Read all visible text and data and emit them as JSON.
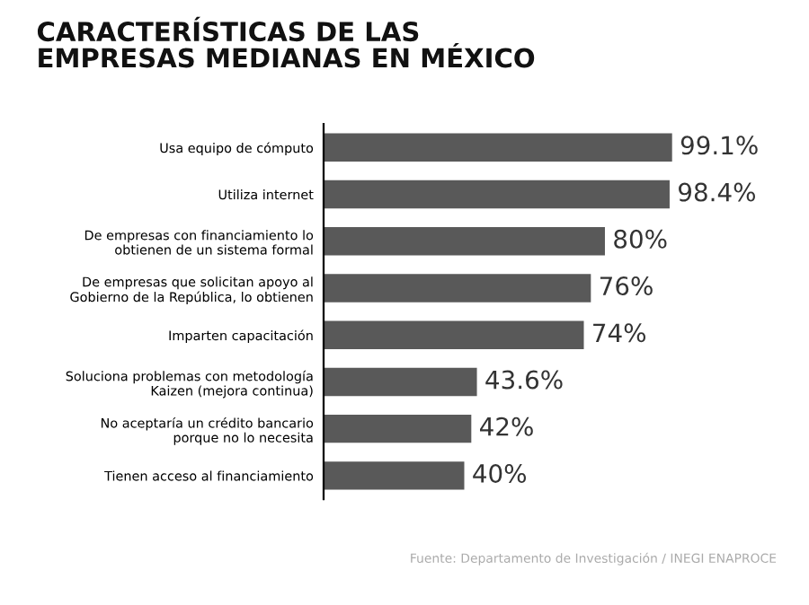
{
  "chart_data": {
    "type": "bar",
    "orientation": "horizontal",
    "title": "CARACTERÍSTICAS DE LAS\nEMPRESAS MEDIANAS EN MÉXICO",
    "categories": [
      "Usa equipo de cómputo",
      "Utiliza internet",
      "De empresas con financiamiento lo\nobtienen de un sistema formal",
      "De empresas que solicitan apoyo al\nGobierno de la República, lo obtienen",
      "Imparten capacitación",
      "Soluciona problemas con metodología\nKaizen (mejora continua)",
      "No aceptaría un crédito bancario\nporque no lo necesita",
      "Tienen acceso al financiamiento"
    ],
    "values": [
      99.1,
      98.4,
      80,
      76,
      74,
      43.6,
      42,
      40
    ],
    "value_labels": [
      "99.1%",
      "98.4%",
      "80%",
      "76%",
      "74%",
      "43.6%",
      "42%",
      "40%"
    ],
    "color": "#595959",
    "annotations": [
      "Fuente: Departamento de Investigación / INEGI ENAPROCE"
    ]
  }
}
